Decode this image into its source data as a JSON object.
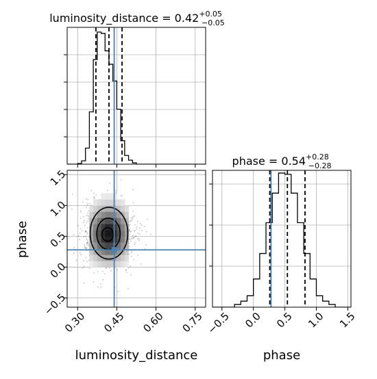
{
  "chart_data": [
    {
      "type": "histogram",
      "panel": "top-left",
      "parameter": "luminosity_distance",
      "title": {
        "main": "luminosity_distance = 0.42",
        "sup": "+0.05",
        "sub": "−0.05"
      },
      "xlim": [
        0.26,
        0.79
      ],
      "ylim": [
        0,
        1.0
      ],
      "bins": [
        {
          "x0": 0.3,
          "x1": 0.315,
          "h": 0.005
        },
        {
          "x0": 0.315,
          "x1": 0.33,
          "h": 0.025
        },
        {
          "x0": 0.33,
          "x1": 0.345,
          "h": 0.12
        },
        {
          "x0": 0.345,
          "x1": 0.36,
          "h": 0.39
        },
        {
          "x0": 0.36,
          "x1": 0.375,
          "h": 0.78
        },
        {
          "x0": 0.375,
          "x1": 0.39,
          "h": 0.985
        },
        {
          "x0": 0.39,
          "x1": 0.405,
          "h": 0.975
        },
        {
          "x0": 0.405,
          "x1": 0.42,
          "h": 0.845
        },
        {
          "x0": 0.42,
          "x1": 0.435,
          "h": 0.745
        },
        {
          "x0": 0.435,
          "x1": 0.45,
          "h": 0.62
        },
        {
          "x0": 0.45,
          "x1": 0.465,
          "h": 0.41
        },
        {
          "x0": 0.465,
          "x1": 0.48,
          "h": 0.175
        },
        {
          "x0": 0.48,
          "x1": 0.495,
          "h": 0.065
        },
        {
          "x0": 0.495,
          "x1": 0.51,
          "h": 0.03
        },
        {
          "x0": 0.51,
          "x1": 0.525,
          "h": 0.01
        }
      ],
      "quantiles": [
        0.37,
        0.42,
        0.47
      ],
      "truth": 0.44,
      "grid": true
    },
    {
      "type": "histogram",
      "panel": "bottom-right",
      "parameter": "phase",
      "title": {
        "main": "phase = 0.54",
        "sup": "+0.28",
        "sub": "−0.28"
      },
      "xlim": [
        -0.65,
        1.55
      ],
      "ylim": [
        0,
        1.0
      ],
      "bins": [
        {
          "x0": -0.3,
          "x1": -0.2,
          "h": 0.02
        },
        {
          "x0": -0.2,
          "x1": -0.1,
          "h": 0.045
        },
        {
          "x0": -0.1,
          "x1": 0.0,
          "h": 0.085
        },
        {
          "x0": 0.0,
          "x1": 0.1,
          "h": 0.21
        },
        {
          "x0": 0.1,
          "x1": 0.2,
          "h": 0.4
        },
        {
          "x0": 0.2,
          "x1": 0.3,
          "h": 0.63
        },
        {
          "x0": 0.3,
          "x1": 0.4,
          "h": 0.85
        },
        {
          "x0": 0.4,
          "x1": 0.5,
          "h": 1.0
        },
        {
          "x0": 0.5,
          "x1": 0.6,
          "h": 0.99
        },
        {
          "x0": 0.6,
          "x1": 0.7,
          "h": 0.85
        },
        {
          "x0": 0.7,
          "x1": 0.8,
          "h": 0.63
        },
        {
          "x0": 0.8,
          "x1": 0.9,
          "h": 0.4
        },
        {
          "x0": 0.9,
          "x1": 1.0,
          "h": 0.21
        },
        {
          "x0": 1.0,
          "x1": 1.1,
          "h": 0.085
        },
        {
          "x0": 1.1,
          "x1": 1.2,
          "h": 0.045
        },
        {
          "x0": 1.2,
          "x1": 1.3,
          "h": 0.02
        }
      ],
      "quantiles": [
        0.26,
        0.54,
        0.82
      ],
      "truth": 0.28,
      "grid": true
    },
    {
      "type": "heatmap",
      "panel": "bottom-left",
      "xlabel": "luminosity_distance",
      "ylabel": "phase",
      "xlim": [
        0.26,
        0.79
      ],
      "ylim": [
        -0.65,
        1.57
      ],
      "xticks": [
        0.3,
        0.45,
        0.6,
        0.75
      ],
      "xtick_labels": [
        "0.30",
        "0.45",
        "0.60",
        "0.75"
      ],
      "yticks": [
        -0.5,
        0.0,
        0.5,
        1.0,
        1.5
      ],
      "ytick_labels": [
        "−0.5",
        "0.0",
        "0.5",
        "1.0",
        "1.5"
      ],
      "samples_center": [
        0.42,
        0.54
      ],
      "samples_spread": [
        0.05,
        0.28
      ],
      "contour_levels": [
        {
          "cx": 0.415,
          "cy": 0.53,
          "rx": 0.022,
          "ry": 0.11
        },
        {
          "cx": 0.418,
          "cy": 0.54,
          "rx": 0.045,
          "ry": 0.255
        },
        {
          "cx": 0.42,
          "cy": 0.55,
          "rx": 0.072,
          "ry": 0.42
        }
      ],
      "truth": [
        0.44,
        0.28
      ],
      "grid": true
    }
  ],
  "phase_xticks": [
    -0.5,
    0.0,
    0.5,
    1.0,
    1.5
  ],
  "phase_xtick_labels": [
    "−0.5",
    "0.0",
    "0.5",
    "1.0",
    "1.5"
  ],
  "phase_xlabel": "phase",
  "colors": {
    "truth": "#4682b4",
    "hist": "#000000",
    "quantile": "#000000",
    "grid": "#b0b0b0",
    "scatter": "#000000"
  }
}
